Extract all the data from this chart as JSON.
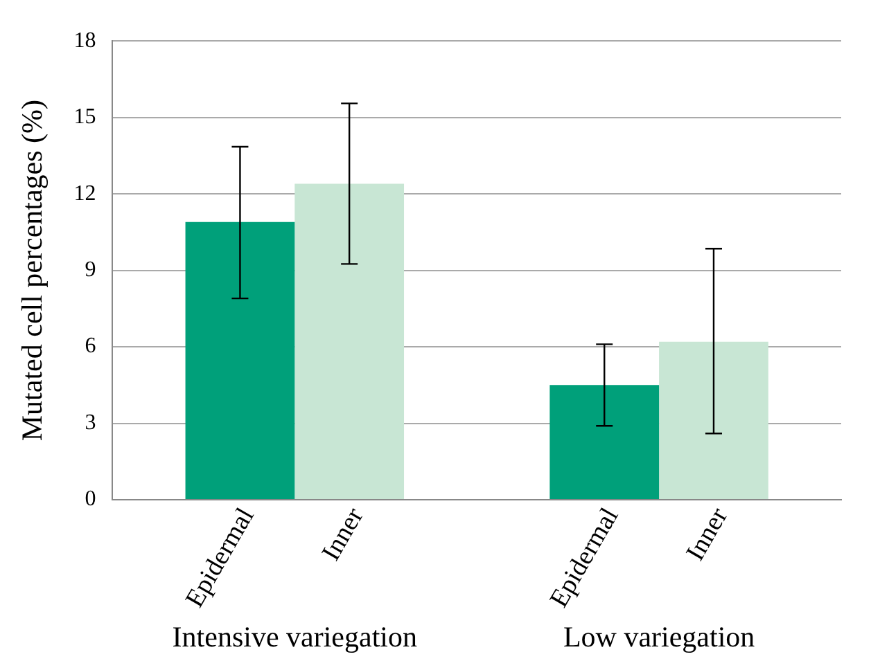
{
  "chart_data": {
    "type": "bar",
    "ylabel": "Mutated cell percentages (%)",
    "categories": [
      "Intensive variegation",
      "Low variegation"
    ],
    "series": [
      {
        "name": "Epidermal",
        "color": "#00a07a",
        "values": [
          10.9,
          4.5
        ],
        "errors": [
          [
            7.9,
            13.85
          ],
          [
            2.9,
            6.1
          ]
        ]
      },
      {
        "name": "Inner",
        "color": "#c8e6d4",
        "values": [
          12.4,
          6.2
        ],
        "errors": [
          [
            9.25,
            15.55
          ],
          [
            2.6,
            9.85
          ]
        ]
      }
    ],
    "ylim": [
      0,
      18
    ],
    "yticks": [
      0,
      3,
      6,
      9,
      12,
      15,
      18
    ],
    "grid": "y",
    "legend": false
  }
}
